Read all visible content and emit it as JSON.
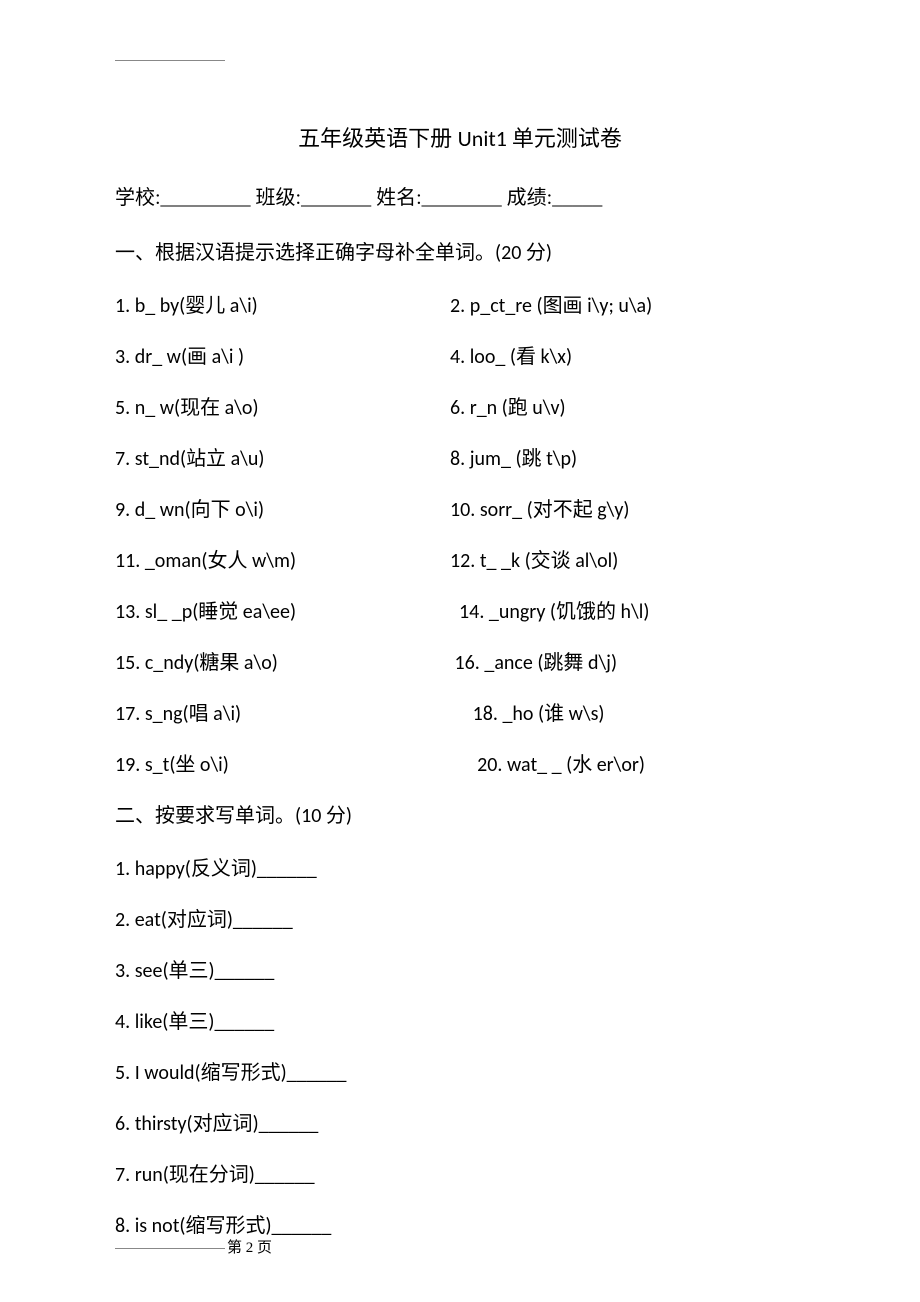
{
  "title_cn_prefix": "五年级英语下册 ",
  "title_latin": "Unit1 ",
  "title_cn_suffix": "单元测试卷",
  "header_line": "学校:_________  班级:_______  姓名:________  成绩:_____",
  "section1": {
    "heading_cn": "一、根据汉语提示选择正确字母补全单词。",
    "heading_score": "(20 分)",
    "rows": [
      {
        "l_num": "1. ",
        "l_en": "b_ by(",
        "l_cn": "婴儿",
        "l_tail": " a\\i)",
        "r_num": "2. ",
        "r_en": "p_ct_re (",
        "r_cn": "图画",
        "r_tail": " i\\y; u\\a)"
      },
      {
        "l_num": "3. ",
        "l_en": "dr_ w(",
        "l_cn": "画",
        "l_tail": " a\\i )",
        "r_num": "4. ",
        "r_en": "loo_ (",
        "r_cn": "看",
        "r_tail": " k\\x)"
      },
      {
        "l_num": "5. ",
        "l_en": "n_ w(",
        "l_cn": "现在",
        "l_tail": " a\\o)",
        "r_num": "6. ",
        "r_en": "r_n (",
        "r_cn": "跑",
        "r_tail": " u\\v)"
      },
      {
        "l_num": "7. ",
        "l_en": "st_nd(",
        "l_cn": "站立",
        "l_tail": " a\\u)",
        "r_num": "8. ",
        "r_en": "jum_ (",
        "r_cn": "跳",
        "r_tail": " t\\p)"
      },
      {
        "l_num": "9. ",
        "l_en": "d_ wn(",
        "l_cn": "向下",
        "l_tail": " o\\i)",
        "r_num": "10. ",
        "r_en": "sorr_ (",
        "r_cn": "对不起",
        "r_tail": " g\\y)"
      },
      {
        "l_num": "11. ",
        "l_en": "_oman(",
        "l_cn": "女人",
        "l_tail": " w\\m)",
        "r_num": "12. ",
        "r_en": "t_ _k (",
        "r_cn": "交谈",
        "r_tail": " al\\ol)"
      },
      {
        "l_num": "13. ",
        "l_en": "sl_ _p(",
        "l_cn": "睡觉",
        "l_tail": " ea\\ee)",
        "r_pad": "  ",
        "r_num": "14. ",
        "r_en": "_ungry (",
        "r_cn": "饥饿的",
        "r_tail": " h\\l)"
      },
      {
        "l_num": "15. ",
        "l_en": "c_ndy(",
        "l_cn": "糖果",
        "l_tail": " a\\o)",
        "r_pad": " ",
        "r_num": "16. ",
        "r_en": "_ance (",
        "r_cn": "跳舞",
        "r_tail": " d\\j)"
      },
      {
        "l_num": "17. ",
        "l_en": "s_ng(",
        "l_cn": "唱",
        "l_tail": " a\\i)",
        "r_pad": "     ",
        "r_num": "18. ",
        "r_en": "_ho (",
        "r_cn": "谁",
        "r_tail": " w\\s)"
      },
      {
        "l_num": "19. ",
        "l_en": "s_t(",
        "l_cn": "坐",
        "l_tail": " o\\i)",
        "r_pad": "      ",
        "r_num": "20. ",
        "r_en": "wat_ _ (",
        "r_cn": "水",
        "r_tail": " er\\or)"
      }
    ]
  },
  "section2": {
    "heading_cn": "二、按要求写单词。",
    "heading_score": "(10 分)",
    "items": [
      {
        "num": "1. ",
        "en": "happy(",
        "cn": "反义词",
        "tail": ")______"
      },
      {
        "num": "2. ",
        "en": "eat(",
        "cn": "对应词",
        "tail": ")______"
      },
      {
        "num": "3. ",
        "en": "see(",
        "cn": "单三",
        "tail": ")______"
      },
      {
        "num": "4. ",
        "en": "like(",
        "cn": "单三",
        "tail": ")______"
      },
      {
        "num": "5. ",
        "en": "I would(",
        "cn": "缩写形式",
        "tail": ")______"
      },
      {
        "num": "6. ",
        "en": "thirsty(",
        "cn": "对应词",
        "tail": ")______"
      },
      {
        "num": "7. ",
        "en": "run(",
        "cn": "现在分词",
        "tail": ")______"
      },
      {
        "num": "8. ",
        "en": "is not(",
        "cn": "缩写形式",
        "tail": ")______"
      }
    ]
  },
  "footer": "第 2 页"
}
